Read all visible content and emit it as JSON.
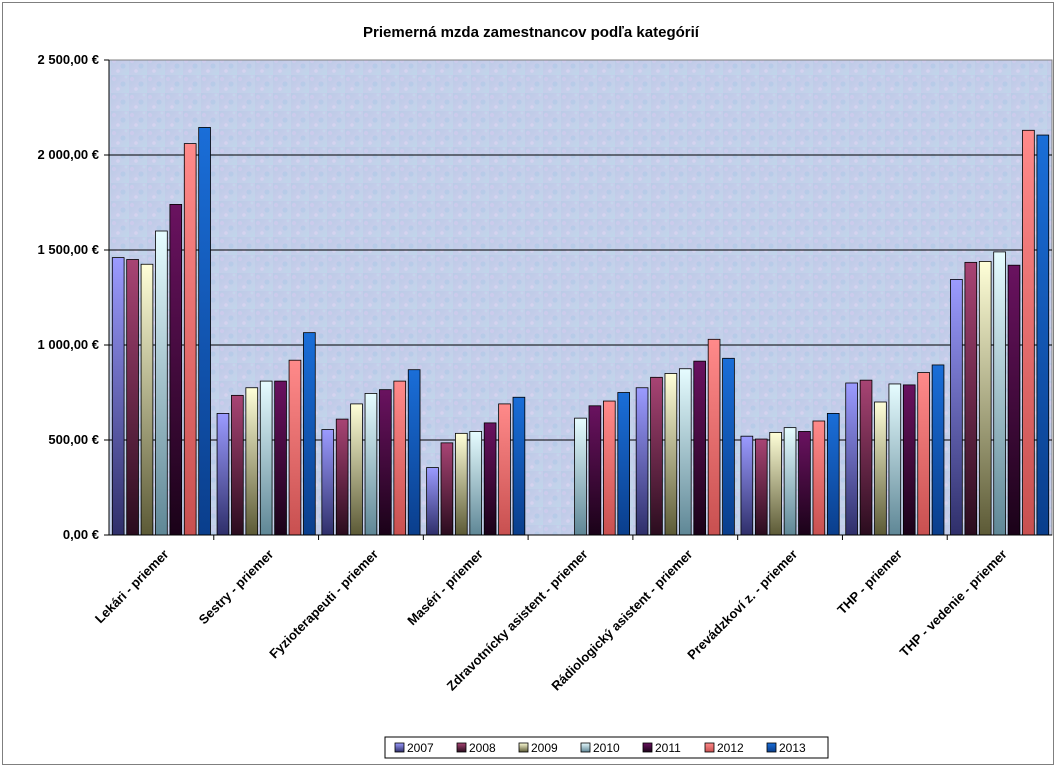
{
  "chart_data": {
    "type": "bar",
    "title": "Priemerná mzda zamestnancov podľa kategórií",
    "ylim": [
      0,
      2500
    ],
    "yticks": [
      0,
      500,
      1000,
      1500,
      2000,
      2500
    ],
    "ytick_labels": [
      "0,00 €",
      "500,00 €",
      "1 000,00 €",
      "1 500,00 €",
      "2 000,00 €",
      "2 500,00 €"
    ],
    "grid": true,
    "legend_position": "bottom",
    "categories": [
      "Lekári - priemer",
      "Sestry - priemer",
      "Fyzioterapeuti - priemer",
      "Maséri - priemer",
      "Zdravotnícky asistent - priemer",
      "Rádiologický asistent - priemer",
      "Prevádzkoví z. - priemer",
      "THP - priemer",
      "THP - vedenie - priemer"
    ],
    "series": [
      {
        "name": "2007",
        "color": "#8c8cf0",
        "values": [
          1460,
          640,
          555,
          355,
          null,
          775,
          520,
          800,
          1345
        ]
      },
      {
        "name": "2008",
        "color": "#9a3a6a",
        "values": [
          1450,
          735,
          610,
          485,
          null,
          830,
          505,
          815,
          1435
        ]
      },
      {
        "name": "2009",
        "color": "#f2f0c0",
        "values": [
          1425,
          775,
          690,
          535,
          null,
          850,
          540,
          700,
          1440
        ]
      },
      {
        "name": "2010",
        "color": "#dcf8ff",
        "values": [
          1600,
          810,
          745,
          545,
          615,
          875,
          565,
          795,
          1490
        ]
      },
      {
        "name": "2011",
        "color": "#5a0a50",
        "values": [
          1740,
          810,
          765,
          590,
          680,
          915,
          545,
          790,
          1420
        ]
      },
      {
        "name": "2012",
        "color": "#ff8080",
        "values": [
          2060,
          920,
          810,
          690,
          705,
          1030,
          600,
          855,
          2130
        ]
      },
      {
        "name": "2013",
        "color": "#1060c8",
        "values": [
          2145,
          1065,
          870,
          725,
          750,
          930,
          640,
          895,
          2105
        ]
      }
    ]
  }
}
